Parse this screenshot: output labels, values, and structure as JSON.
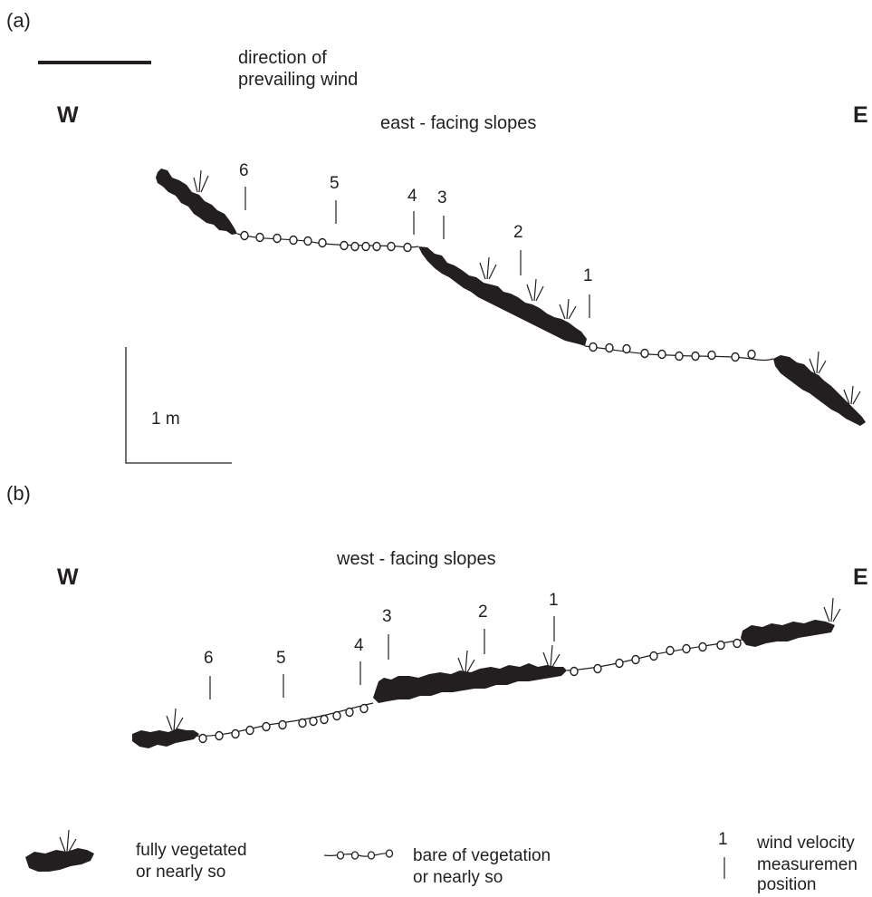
{
  "panels": [
    {
      "label": "(a)",
      "west": "W",
      "east": "E",
      "caption": "east - facing slopes",
      "positions": [
        "6",
        "5",
        "4",
        "3",
        "2",
        "1"
      ]
    },
    {
      "label": "(b)",
      "west": "W",
      "east": "E",
      "caption": "west - facing slopes",
      "positions": [
        "6",
        "5",
        "4",
        "3",
        "2",
        "1"
      ]
    }
  ],
  "wind": {
    "label_line1": "direction of",
    "label_line2": "prevailing wind"
  },
  "scale": {
    "label": "1 m"
  },
  "legend": {
    "vegetated_line1": "fully vegetated",
    "vegetated_line2": "or nearly so",
    "bare_line1": "bare of vegetation",
    "bare_line2": "or nearly so",
    "marker_number": "1",
    "marker_line1": "wind velocity",
    "marker_line2": "measuremen",
    "marker_line3": "position"
  }
}
